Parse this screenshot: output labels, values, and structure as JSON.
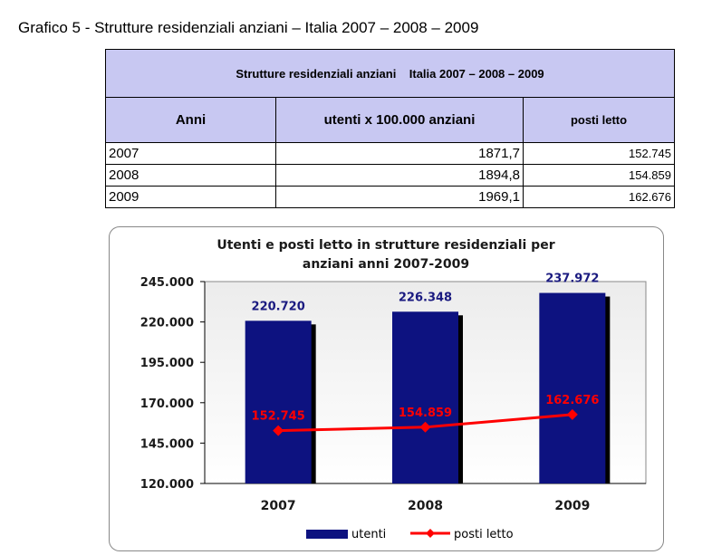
{
  "page_title": "Grafico 5 - Strutture residenziali anziani – Italia 2007 – 2008 – 2009",
  "table": {
    "caption": "Strutture residenziali anziani    Italia 2007 – 2008 – 2009",
    "headers": [
      "Anni",
      "utenti x 100.000 anziani",
      "posti letto"
    ],
    "rows": [
      [
        "2007",
        "1871,7",
        "152.745"
      ],
      [
        "2008",
        "1894,8",
        "154.859"
      ],
      [
        "2009",
        "1969,1",
        "162.676"
      ]
    ]
  },
  "chart_data": {
    "type": "bar",
    "title": "Utenti e posti letto in strutture residenziali per anziani anni 2007-2009",
    "title_lines": [
      "Utenti e posti letto in strutture residenziali per",
      "anziani anni 2007-2009"
    ],
    "categories": [
      "2007",
      "2008",
      "2009"
    ],
    "series": [
      {
        "name": "utenti",
        "type": "bar",
        "values": [
          220720,
          226348,
          237972
        ],
        "labels": [
          "220.720",
          "226.348",
          "237.972"
        ],
        "color": "#0d1280"
      },
      {
        "name": "posti letto",
        "type": "line",
        "values": [
          152745,
          154859,
          162676
        ],
        "labels": [
          "152.745",
          "154.859",
          "162.676"
        ],
        "color": "#ff0000"
      }
    ],
    "ylim": [
      120000,
      245000
    ],
    "yticks": [
      120000,
      145000,
      170000,
      195000,
      220000,
      245000
    ],
    "ytick_labels": [
      "120.000",
      "145.000",
      "170.000",
      "195.000",
      "220.000",
      "245.000"
    ],
    "xlabel": "",
    "ylabel": "",
    "grid": false,
    "legend_position": "bottom",
    "plot_background": "#ffffff",
    "label_colors": {
      "bar": "#1a1a80",
      "line": "#ff0000"
    }
  }
}
